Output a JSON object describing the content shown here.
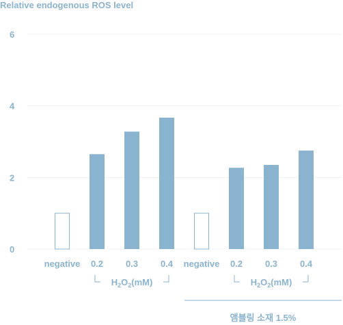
{
  "chart_data": {
    "type": "bar",
    "title": "Relative endogenous ROS level",
    "ylim": [
      0,
      6
    ],
    "yticks": [
      "0",
      "2",
      "4",
      "6"
    ],
    "grid": true,
    "colors": {
      "filled": "#8ab3cf",
      "negative_fill": "#ffffff",
      "negative_stroke": "#8ab3cf",
      "text": "#8ab3cf",
      "grid": "#eef1f4"
    },
    "groups": [
      {
        "label_prefix": "H",
        "label_sub1": "2",
        "label_mid": "O",
        "label_sub2": "2",
        "label_suffix": "(mM)",
        "categories": [
          "negative",
          "0.2",
          "0.3",
          "0.4"
        ],
        "values": [
          1.0,
          2.65,
          3.28,
          3.67
        ]
      },
      {
        "label_prefix": "H",
        "label_sub1": "2",
        "label_mid": "O",
        "label_sub2": "2",
        "label_suffix": "(mM)",
        "categories": [
          "negative",
          "0.2",
          "0.3",
          "0.4"
        ],
        "values": [
          1.0,
          2.27,
          2.35,
          2.75
        ]
      }
    ],
    "treatment_label": "앰블링 소재 1.5%"
  }
}
